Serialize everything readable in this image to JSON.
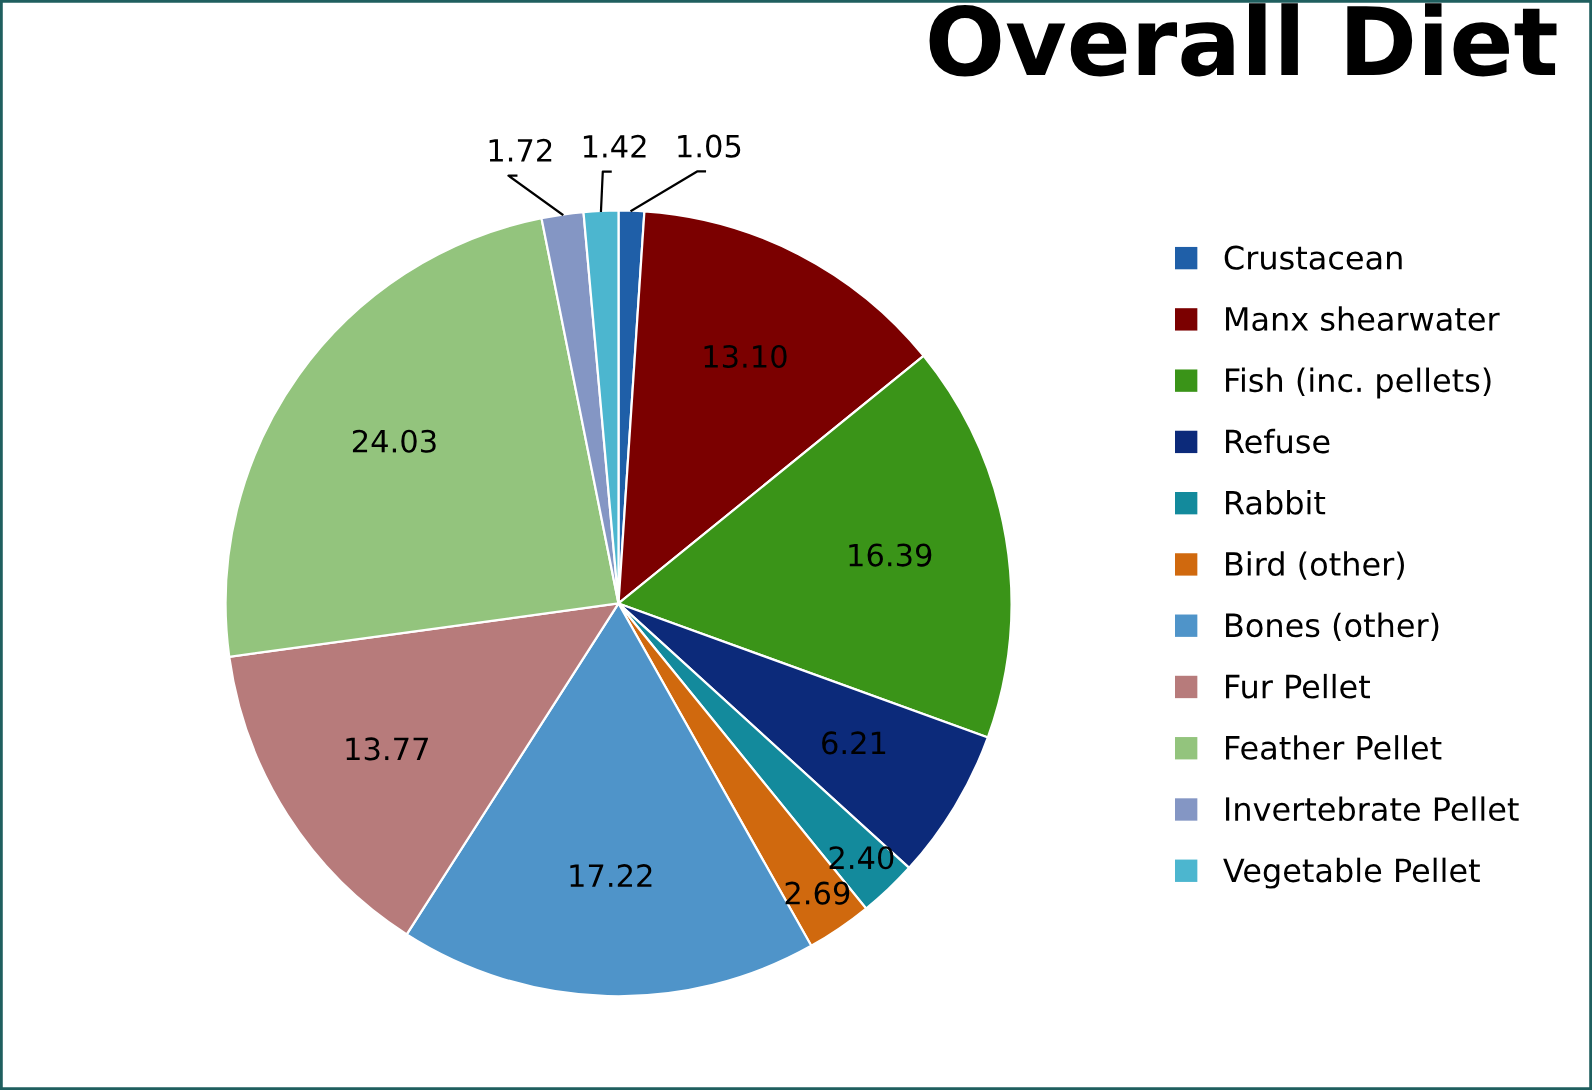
{
  "chart_data": {
    "type": "pie",
    "title": "Overall Diet",
    "categories": [
      "Crustacean",
      "Manx shearwater",
      "Fish (inc. pellets)",
      "Refuse",
      "Rabbit",
      "Bird (other)",
      "Bones (other)",
      "Fur Pellet",
      "Feather Pellet",
      "Invertebrate Pellet",
      "Vegetable Pellet"
    ],
    "values": [
      1.05,
      13.1,
      16.39,
      6.21,
      2.4,
      2.69,
      17.22,
      13.77,
      24.03,
      1.72,
      1.42
    ],
    "colors": [
      "#1f5fa8",
      "#7b0000",
      "#3a9418",
      "#0c2a7a",
      "#138a9c",
      "#d0690e",
      "#4f94c9",
      "#b77b7b",
      "#93c47d",
      "#8496c4",
      "#4cb6cf"
    ],
    "value_labels": [
      "1.05",
      "13.10",
      "16.39",
      "6.21",
      "2.40",
      "2.69",
      "17.22",
      "13.77",
      "24.03",
      "1.72",
      "1.42"
    ],
    "legend": "right"
  }
}
